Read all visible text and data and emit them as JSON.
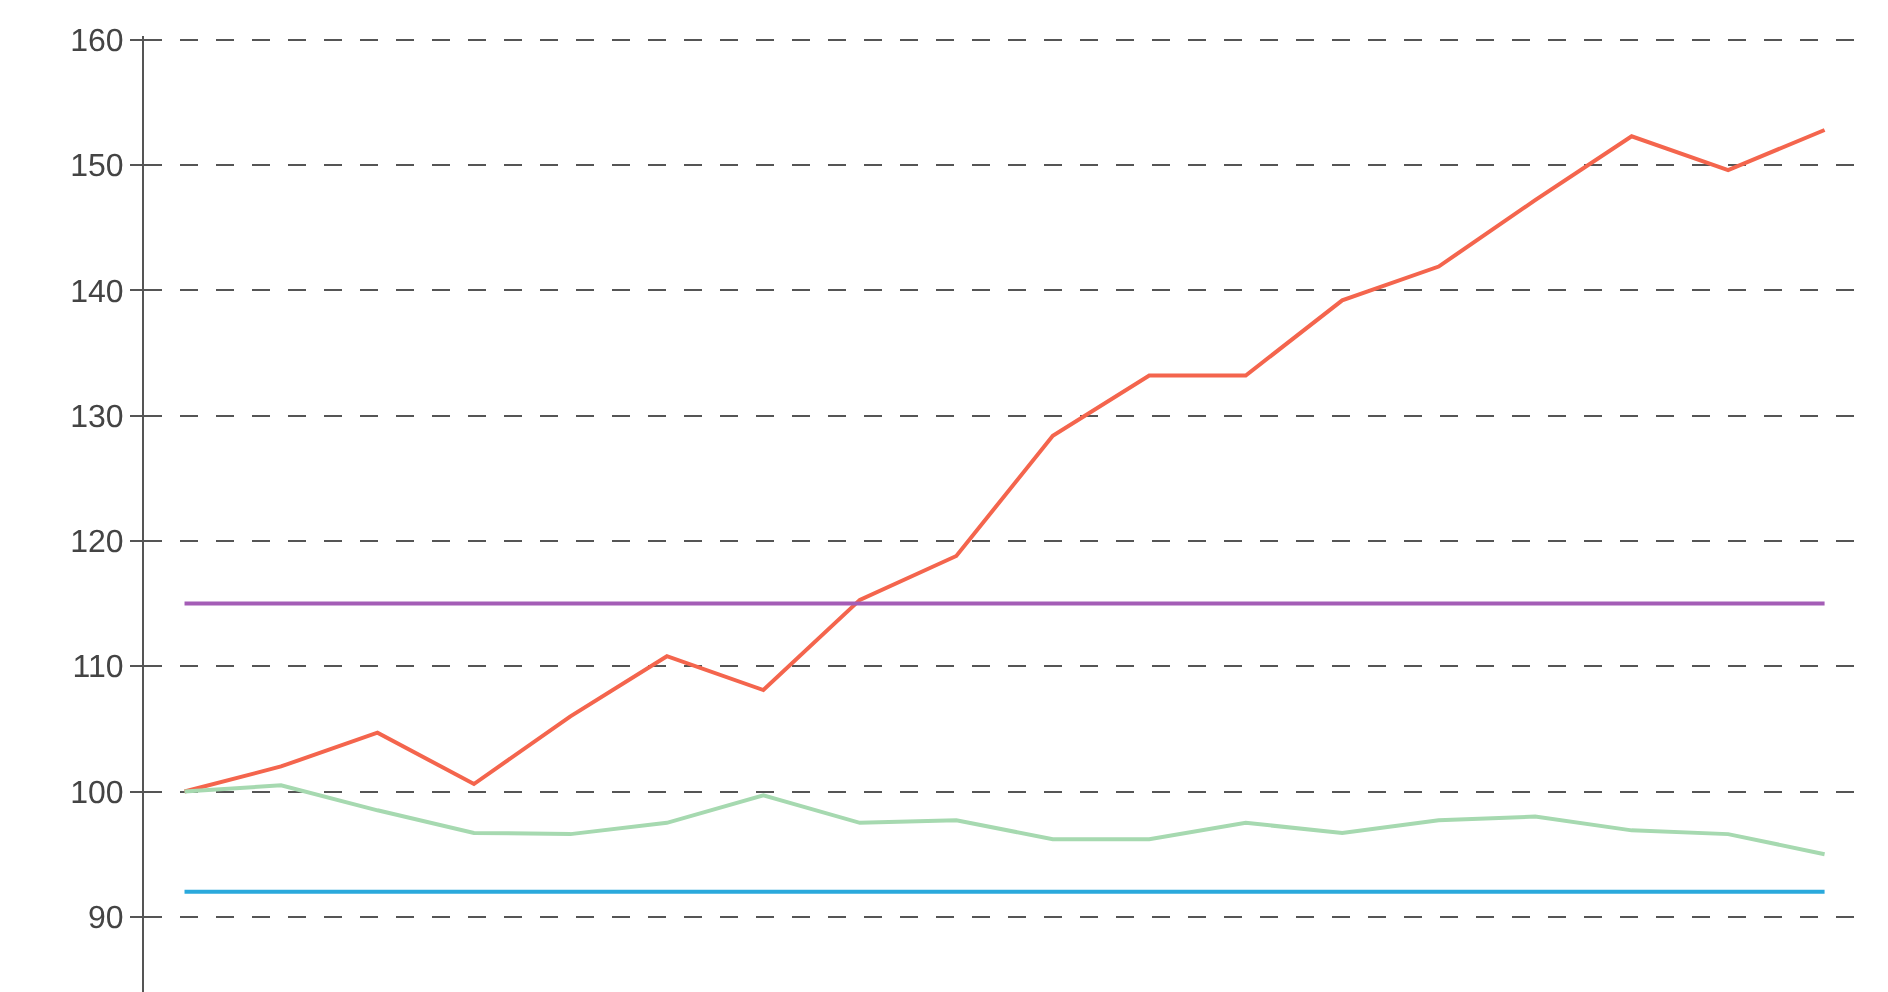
{
  "chart_data": {
    "type": "line",
    "categories": [
      null,
      null,
      null,
      null,
      null,
      null,
      null,
      null,
      null,
      null,
      null,
      null,
      null,
      null,
      null,
      null,
      null,
      null
    ],
    "series": [
      {
        "color": "#f4654d",
        "values": [
          100,
          102,
          104.7,
          100.6,
          106,
          110.8,
          108.1,
          115.3,
          118.8,
          128.4,
          133.2,
          133.2,
          139.2,
          141.9,
          147.2,
          152.3,
          149.6,
          152.8
        ]
      },
      {
        "color": "#a6d9b0",
        "values": [
          100,
          100.5,
          98.5,
          96.7,
          96.6,
          97.5,
          99.7,
          97.5,
          97.7,
          96.2,
          96.2,
          97.5,
          96.7,
          97.7,
          98,
          96.9,
          96.6,
          95
        ]
      },
      {
        "color": "#a45db6",
        "values": [
          115,
          115,
          115,
          115,
          115,
          115,
          115,
          115,
          115,
          115,
          115,
          115,
          115,
          115,
          115,
          115,
          115,
          115
        ]
      },
      {
        "color": "#2aa9dc",
        "values": [
          92,
          92,
          92,
          92,
          92,
          92,
          92,
          92,
          92,
          92,
          92,
          92,
          92,
          92,
          92,
          92,
          92,
          92
        ]
      }
    ],
    "ylim": [
      84,
      160.3
    ],
    "yticks": [
      90,
      100,
      110,
      120,
      130,
      140,
      150,
      160
    ],
    "grid": "y",
    "tick_labels": "y",
    "marker": "none",
    "line_style": "solid"
  }
}
